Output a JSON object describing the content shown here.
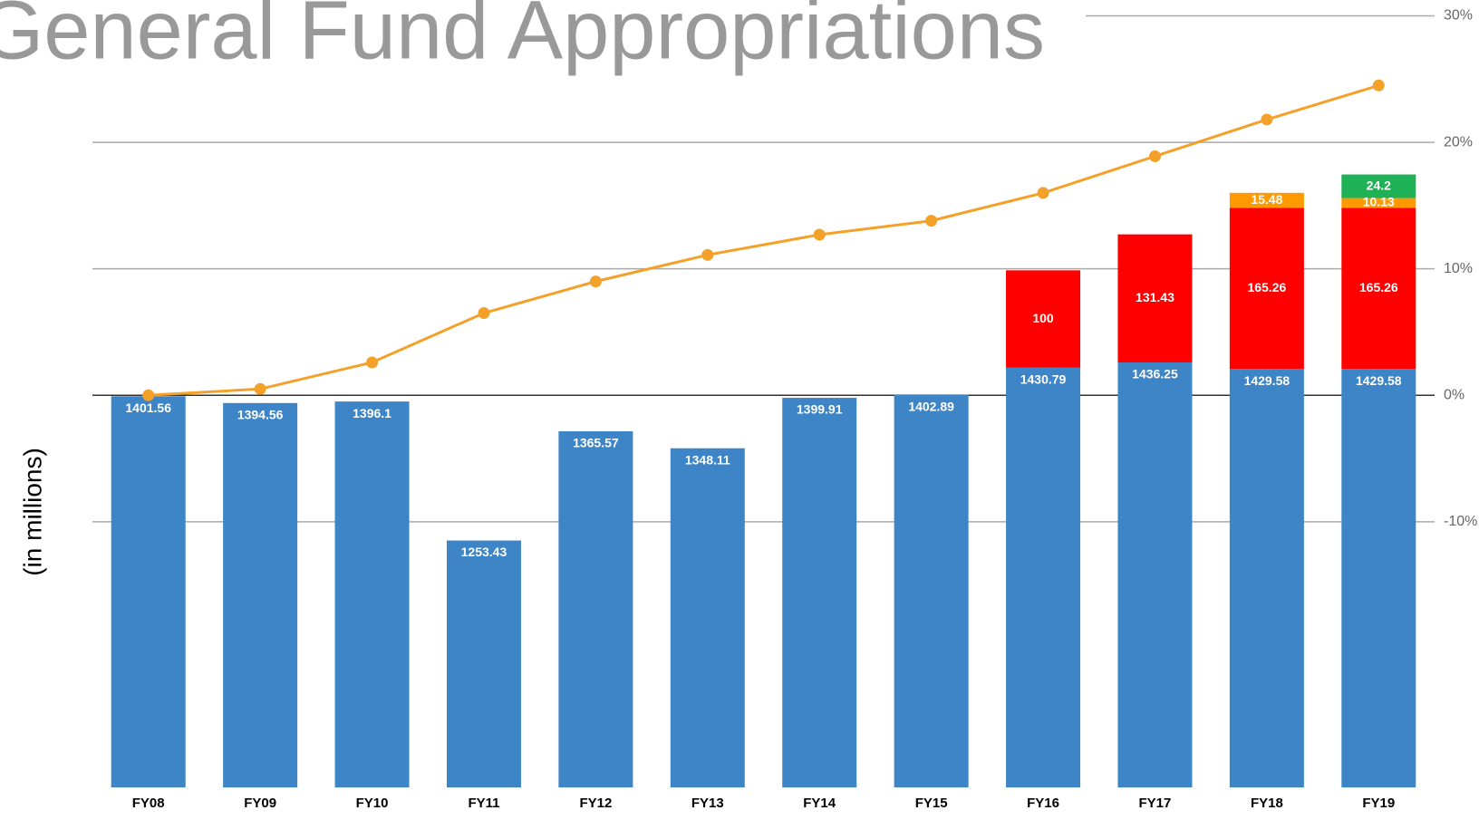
{
  "chart_data": {
    "type": "bar",
    "title": "General Fund Appropriations",
    "y_label": "(in millions)",
    "categories": [
      "FY08",
      "FY09",
      "FY10",
      "FY11",
      "FY12",
      "FY13",
      "FY14",
      "FY15",
      "FY16",
      "FY17",
      "FY18",
      "FY19"
    ],
    "series": [
      {
        "color": "#3d85c6",
        "values": [
          1401.56,
          1394.56,
          1396.1,
          1253.43,
          1365.57,
          1348.11,
          1399.91,
          1402.89,
          1430.79,
          1436.25,
          1429.58,
          1429.58
        ]
      },
      {
        "color": "#ff0000",
        "values": [
          null,
          null,
          null,
          null,
          null,
          null,
          null,
          null,
          100,
          131.43,
          165.26,
          165.26
        ]
      },
      {
        "color": "#ff9900",
        "values": [
          null,
          null,
          null,
          null,
          null,
          null,
          null,
          null,
          null,
          null,
          15.48,
          10.13
        ]
      },
      {
        "color": "#1fb155",
        "values": [
          null,
          null,
          null,
          null,
          null,
          null,
          null,
          null,
          null,
          null,
          null,
          24.2
        ]
      },
      {
        "color": "#f4a12a",
        "axis": "y2",
        "values": [
          0,
          0.5,
          2.6,
          6.5,
          9.0,
          11.1,
          12.7,
          13.8,
          16.0,
          18.9,
          21.8,
          24.5
        ]
      }
    ],
    "ylim": [
      1000,
      1792
    ],
    "y2lim": [
      -31,
      30
    ],
    "y2ticks": [
      {
        "value": 30,
        "label": "30%"
      },
      {
        "value": 20,
        "label": "20%"
      },
      {
        "value": 10,
        "label": "10%"
      },
      {
        "value": 0,
        "label": "0%"
      },
      {
        "value": -10,
        "label": "-10%"
      }
    ],
    "grid": true
  }
}
